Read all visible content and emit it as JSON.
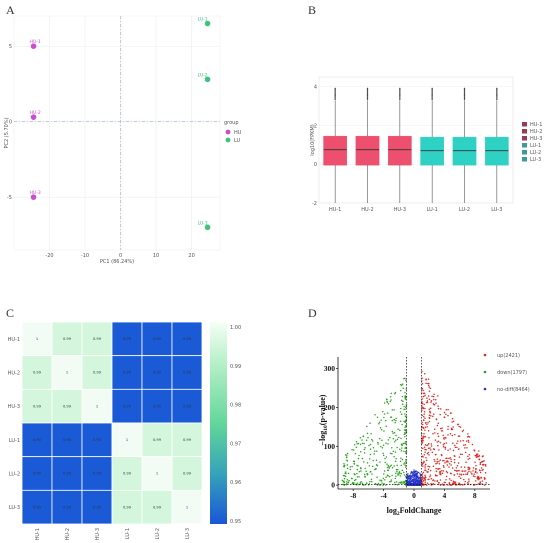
{
  "panels": {
    "a": {
      "letter": "A"
    },
    "b": {
      "letter": "B"
    },
    "c": {
      "letter": "C"
    },
    "d": {
      "letter": "D"
    }
  },
  "pca": {
    "xlabel": "PC1 (86.24%)",
    "ylabel": "PC2 (5.70%)",
    "legend_title": "group",
    "legend_items": [
      {
        "label": "HU",
        "color": "#c94fcf"
      },
      {
        "label": "LU",
        "color": "#3cc47c"
      }
    ],
    "chart_data": {
      "type": "scatter",
      "xlabel": "PC1 (86.24%)",
      "ylabel": "PC2 (5.70%)",
      "xlim": [
        -30,
        28
      ],
      "ylim": [
        -8.5,
        7
      ],
      "xticks": [
        -20,
        -10,
        0,
        10,
        20
      ],
      "yticks": [
        -5,
        0,
        5
      ],
      "series": [
        {
          "name": "HU",
          "color": "#c94fcf",
          "points": [
            {
              "label": "HU-1",
              "x": -24.5,
              "y": 5.0
            },
            {
              "label": "HU-2",
              "x": -24.5,
              "y": 0.3
            },
            {
              "label": "HU-3",
              "x": -24.5,
              "y": -5.0
            }
          ]
        },
        {
          "name": "LU",
          "color": "#3cc47c",
          "points": [
            {
              "label": "LU-1",
              "x": 24.5,
              "y": 6.5
            },
            {
              "label": "LU-2",
              "x": 24.5,
              "y": 2.8
            },
            {
              "label": "LU-3",
              "x": 24.5,
              "y": -7.0
            }
          ]
        }
      ]
    }
  },
  "boxplot": {
    "ylabel": "log10(FPKM)",
    "chart_data": {
      "type": "box",
      "ylabel": "log10(FPKM)",
      "ylim": [
        -2,
        4.5
      ],
      "yticks": [
        -2,
        0,
        2,
        4
      ],
      "categories": [
        "HU-1",
        "HU-2",
        "HU-3",
        "LU-1",
        "LU-2",
        "LU-3"
      ],
      "colors": [
        "#ed4f6f",
        "#ed4f6f",
        "#ed4f6f",
        "#2fd1c5",
        "#2fd1c5",
        "#2fd1c5"
      ],
      "boxes": [
        {
          "q1": -0.05,
          "median": 0.75,
          "q3": 1.45,
          "whisker_low": -2.0,
          "whisker_high": 3.3
        },
        {
          "q1": -0.05,
          "median": 0.75,
          "q3": 1.45,
          "whisker_low": -2.0,
          "whisker_high": 3.3
        },
        {
          "q1": -0.05,
          "median": 0.75,
          "q3": 1.45,
          "whisker_low": -2.0,
          "whisker_high": 3.3
        },
        {
          "q1": -0.05,
          "median": 0.7,
          "q3": 1.4,
          "whisker_low": -2.0,
          "whisker_high": 3.3
        },
        {
          "q1": -0.05,
          "median": 0.7,
          "q3": 1.4,
          "whisker_low": -2.0,
          "whisker_high": 3.3
        },
        {
          "q1": -0.05,
          "median": 0.7,
          "q3": 1.4,
          "whisker_low": -2.0,
          "whisker_high": 3.3
        }
      ],
      "legend": [
        "HU-1",
        "HU-2",
        "HU-3",
        "LU-1",
        "LU-2",
        "LU-3"
      ],
      "legend_colors": [
        "#9a3b53",
        "#9a3b53",
        "#9a3b53",
        "#3e9a98",
        "#3e9a98",
        "#3e9a98"
      ]
    }
  },
  "heatmap": {
    "chart_data": {
      "type": "heatmap",
      "rows": [
        "HU-1",
        "HU-2",
        "HU-3",
        "LU-1",
        "LU-2",
        "LU-3"
      ],
      "cols": [
        "HU-1",
        "HU-2",
        "HU-3",
        "LU-1",
        "LU-2",
        "LU-3"
      ],
      "values": [
        [
          1,
          0.99,
          0.99,
          0.95,
          0.95,
          0.95
        ],
        [
          0.99,
          1,
          0.99,
          0.95,
          0.95,
          0.95
        ],
        [
          0.99,
          0.99,
          1,
          0.95,
          0.95,
          0.95
        ],
        [
          0.95,
          0.95,
          0.95,
          1,
          0.99,
          0.99
        ],
        [
          0.95,
          0.95,
          0.95,
          0.99,
          1,
          0.99
        ],
        [
          0.95,
          0.95,
          0.95,
          0.99,
          0.99,
          1
        ]
      ],
      "cell_text": [
        [
          "1",
          "0.99",
          "0.99",
          "0.95",
          "0.95",
          "0.95"
        ],
        [
          "0.99",
          "1",
          "0.99",
          "0.95",
          "0.95",
          "0.95"
        ],
        [
          "0.99",
          "0.99",
          "1",
          "0.95",
          "0.95",
          "0.95"
        ],
        [
          "0.95",
          "0.95",
          "0.95",
          "1",
          "0.99",
          "0.99"
        ],
        [
          "0.95",
          "0.95",
          "0.95",
          "0.99",
          "1",
          "0.99"
        ],
        [
          "0.95",
          "0.95",
          "0.95",
          "0.99",
          "0.99",
          "1"
        ]
      ],
      "scale_range": [
        0.95,
        1.0
      ],
      "scale_ticks": [
        "1.00",
        "0.99",
        "0.98",
        "0.97",
        "0.96",
        "0.95"
      ],
      "colors": {
        "low": "#1a56d8",
        "high": "#ffffff",
        "mid": "#6fe09b"
      }
    }
  },
  "volcano": {
    "xlabel_main": "log",
    "xlabel_sub": "2",
    "xlabel_rest": "FoldChange",
    "ylabel_pre": "−log",
    "ylabel_sub": "10",
    "ylabel_rest": "(p-value)",
    "legend": [
      {
        "label": "up(2421)",
        "color": "#e0271f"
      },
      {
        "label": "down(1797)",
        "color": "#27a51b"
      },
      {
        "label": "no-diff(8464)",
        "color": "#2432c8"
      }
    ],
    "chart_data": {
      "type": "scatter",
      "xlabel": "log2FoldChange",
      "ylabel": "−log10(p-value)",
      "xlim": [
        -10,
        10
      ],
      "ylim": [
        -10,
        330
      ],
      "xticks": [
        -8,
        -4,
        0,
        4,
        8
      ],
      "yticks": [
        0,
        100,
        200,
        300
      ],
      "thresholds": {
        "fc": [
          -1,
          1
        ],
        "p": 1.3
      },
      "series": [
        {
          "name": "up",
          "count": 2421,
          "color": "#e0271f"
        },
        {
          "name": "down",
          "count": 1797,
          "color": "#27a51b"
        },
        {
          "name": "no-diff",
          "count": 8464,
          "color": "#2432c8"
        }
      ]
    }
  }
}
